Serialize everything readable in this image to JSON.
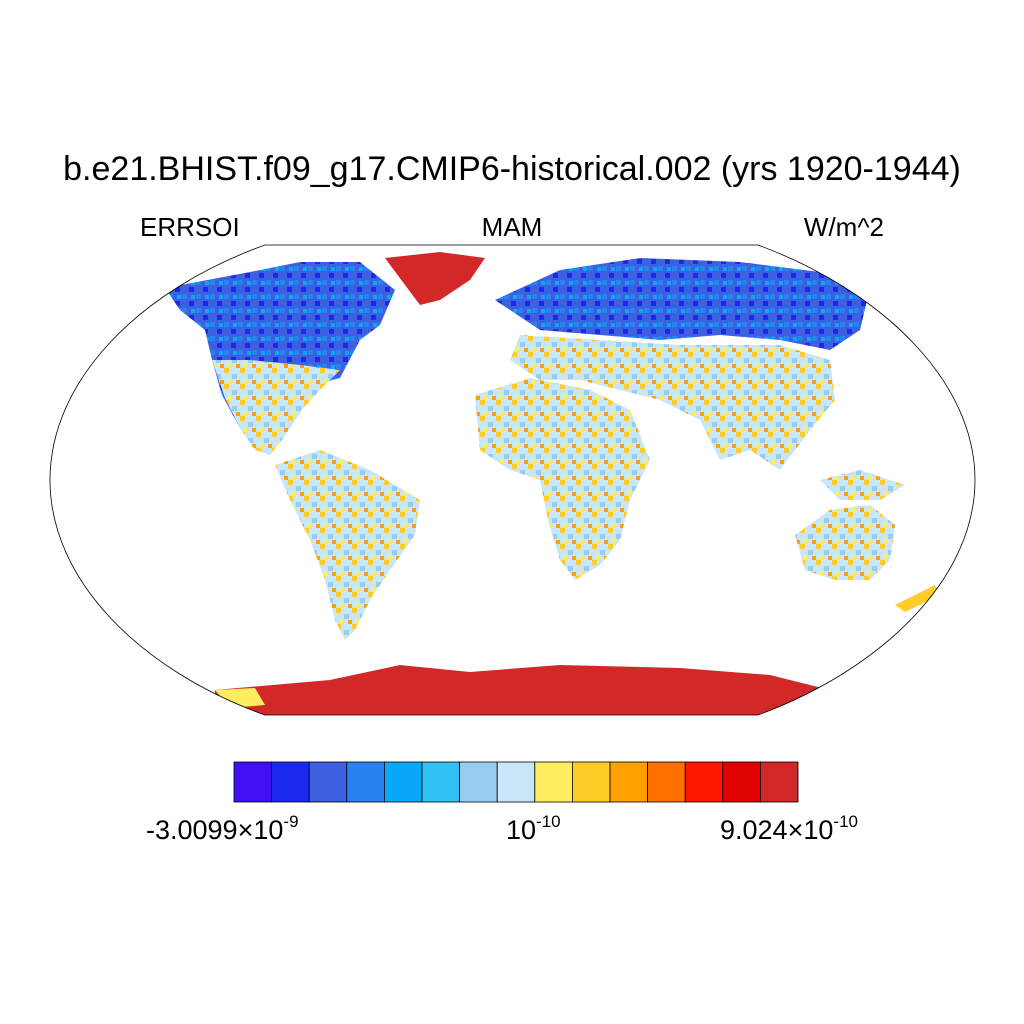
{
  "figure": {
    "title": "b.e21.BHIST.f09_g17.CMIP6-historical.002 (yrs 1920-1944)",
    "variable": "ERRSOI",
    "season": "MAM",
    "units": "W/m^2"
  },
  "colorbar": {
    "colors": [
      "#4010f0",
      "#1a28f0",
      "#3c60e0",
      "#2882f0",
      "#0aa8f8",
      "#32c0f4",
      "#96cdef",
      "#c8e6f8",
      "#ffee60",
      "#ffcc28",
      "#ffa000",
      "#ff7000",
      "#ff1800",
      "#e00000",
      "#d22828"
    ],
    "labels": [
      {
        "mantissa": "-3.0099",
        "times": "×",
        "base": "10",
        "exponent": "-9"
      },
      {
        "mantissa": "",
        "times": "",
        "base": "10",
        "exponent": "-10"
      },
      {
        "mantissa": "9.024",
        "times": "×",
        "base": "10",
        "exponent": "-10"
      }
    ]
  },
  "map": {
    "projection": "Robinson",
    "ocean_fill": "#ffffff",
    "region_colors": {
      "high_latitude_north": "#3c60e0",
      "boreal_deep": "#1a28f0",
      "tropics_land": "#c8e6f8",
      "tropics_positive": "#ffcc28",
      "greenland": "#d22828",
      "antarctica": "#d22828"
    }
  }
}
